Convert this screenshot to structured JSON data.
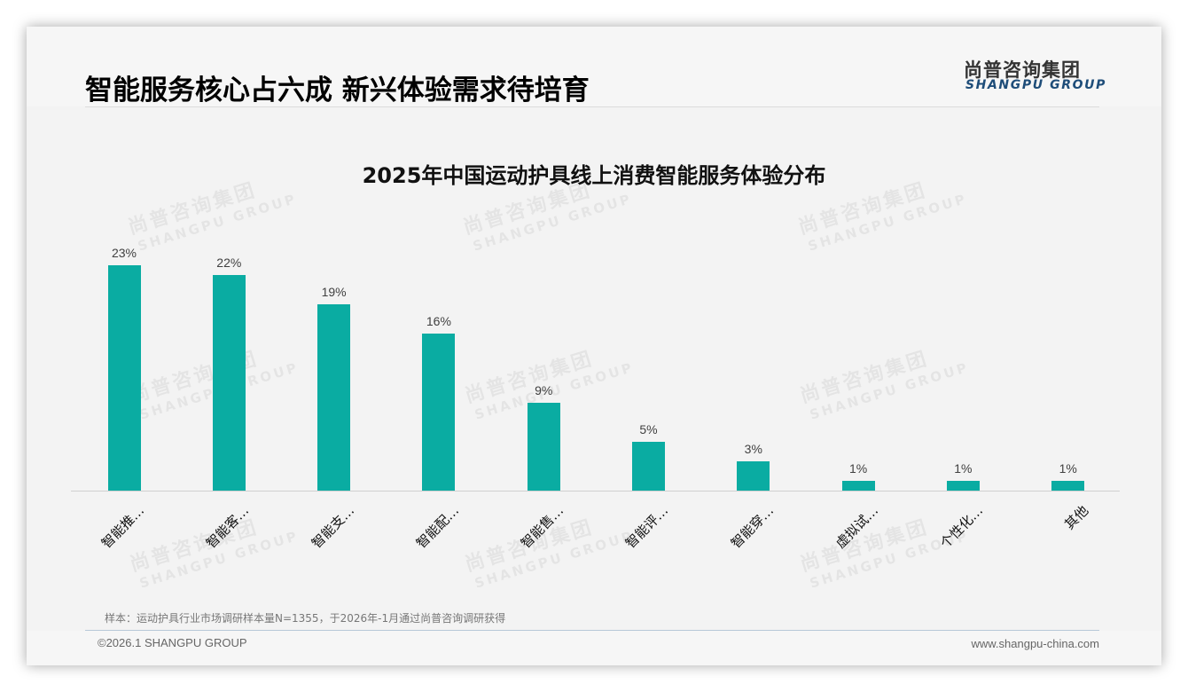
{
  "header": {
    "title": "智能服务核心占六成 新兴体验需求待培育",
    "logo_cn": "尚普咨询集团",
    "logo_en": "SHANGPU GROUP"
  },
  "watermark": {
    "cn": "尚普咨询集团",
    "en": "SHANGPU GROUP"
  },
  "colors": {
    "bar": "#0aaca2",
    "logo_en": "#1e4d79"
  },
  "chart_data": {
    "type": "bar",
    "title": "2025年中国运动护具线上消费智能服务体验分布",
    "categories": [
      "智能推…",
      "智能客…",
      "智能支…",
      "智能配…",
      "智能售…",
      "智能评…",
      "智能穿…",
      "虚拟试…",
      "个性化…",
      "其他"
    ],
    "values": [
      23,
      22,
      19,
      16,
      9,
      5,
      3,
      1,
      1,
      1
    ],
    "value_labels": [
      "23%",
      "22%",
      "19%",
      "16%",
      "9%",
      "5%",
      "3%",
      "1%",
      "1%",
      "1%"
    ],
    "unit": "%",
    "xlabel": "",
    "ylabel": "",
    "ylim": [
      0,
      25
    ],
    "grid": false,
    "legend": null,
    "x_tick_rotation": -45
  },
  "footer": {
    "source_note": "样本：运动护具行业市场调研样本量N=1355，于2026年-1月通过尚普咨询调研获得",
    "copyright": "©2026.1 SHANGPU GROUP",
    "website": "www.shangpu-china.com"
  }
}
